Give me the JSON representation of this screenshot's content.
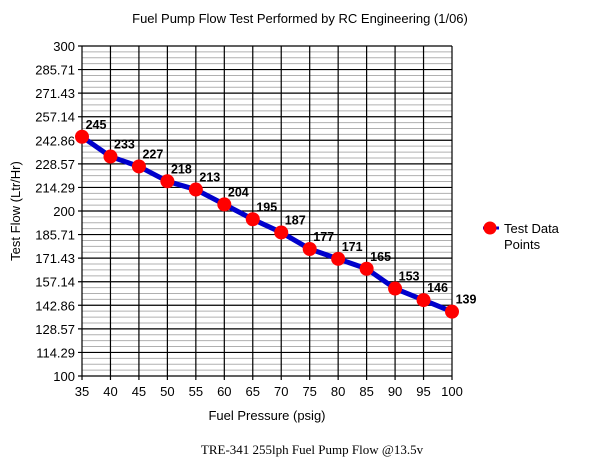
{
  "chart_data": {
    "type": "line",
    "title": "Fuel Pump Flow Test Performed by RC Engineering (1/06)",
    "subtitle": "TRE-341  255lph Fuel Pump Flow @13.5v",
    "xlabel": "Fuel Pressure (psig)",
    "ylabel": "Test Flow (Ltr/Hr)",
    "xlim": [
      35,
      100
    ],
    "ylim": [
      100,
      300
    ],
    "x_ticks": [
      "35",
      "40",
      "45",
      "50",
      "55",
      "60",
      "65",
      "70",
      "75",
      "80",
      "85",
      "90",
      "95",
      "100"
    ],
    "y_ticks": [
      "100",
      "114.29",
      "128.57",
      "142.86",
      "157.14",
      "171.43",
      "185.71",
      "200",
      "214.29",
      "228.57",
      "242.86",
      "257.14",
      "271.43",
      "285.71",
      "300"
    ],
    "grid": true,
    "legend_position": "right",
    "series": [
      {
        "name": "Test Data Points",
        "line_color": "#0000cc",
        "marker_color": "#ff0000",
        "x": [
          35,
          40,
          45,
          50,
          55,
          60,
          65,
          70,
          75,
          80,
          85,
          90,
          95,
          100
        ],
        "y": [
          245,
          233,
          227,
          218,
          213,
          204,
          195,
          187,
          177,
          171,
          165,
          153,
          146,
          139
        ],
        "labels": [
          "245",
          "233",
          "227",
          "218",
          "213",
          "204",
          "195",
          "187",
          "177",
          "171",
          "165",
          "153",
          "146",
          "139"
        ]
      }
    ]
  }
}
